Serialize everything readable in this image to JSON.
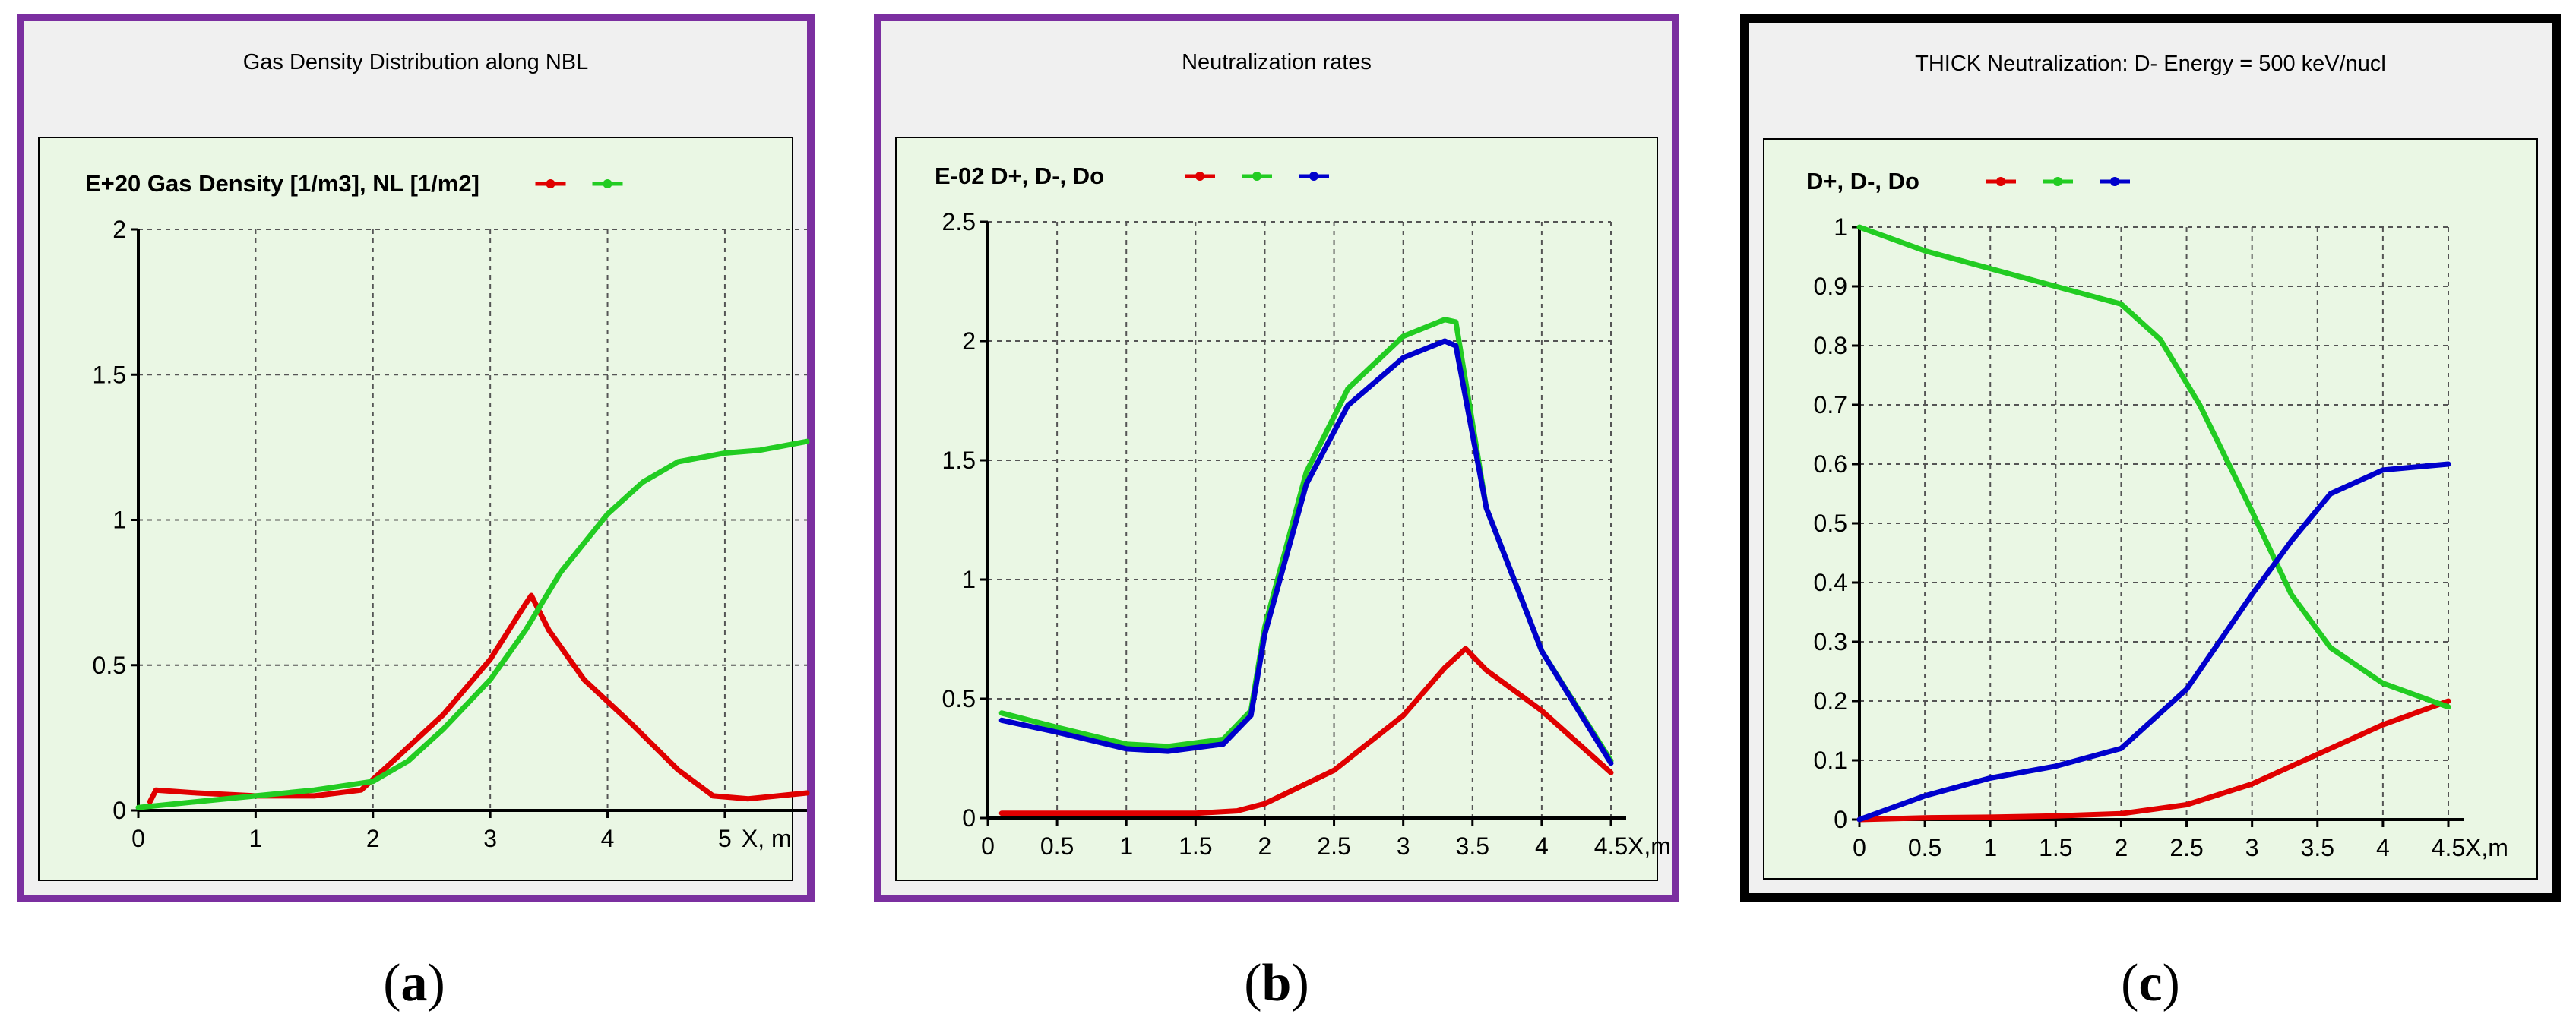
{
  "panels": [
    {
      "caption_letter": "a",
      "border_color": "#7b2fa0"
    },
    {
      "caption_letter": "b",
      "border_color": "#7b2fa0"
    },
    {
      "caption_letter": "c",
      "border_color": "#000000"
    }
  ],
  "chart_data": [
    {
      "type": "line",
      "title": "Gas Density Distribution along NBL",
      "header": "E+20  Gas Density [1/m3], NL [1/m2]",
      "xlabel": "X, m",
      "xlim": [
        0,
        5.7
      ],
      "ylim": [
        0,
        2
      ],
      "x_ticks": [
        0,
        1,
        2,
        3,
        4,
        5
      ],
      "x_tick_labels": [
        "0",
        "1",
        "2",
        "3",
        "4",
        "5"
      ],
      "y_ticks": [
        0,
        0.5,
        1,
        1.5,
        2
      ],
      "y_tick_labels": [
        "0",
        "0.5",
        "1",
        "1.5",
        "2"
      ],
      "grid": true,
      "legend": "top-right",
      "series": [
        {
          "color": "#e00000",
          "x": [
            0.1,
            0.15,
            0.5,
            1.0,
            1.5,
            1.9,
            2.2,
            2.6,
            3.0,
            3.3,
            3.35,
            3.5,
            3.8,
            4.2,
            4.6,
            4.9,
            5.2,
            5.7
          ],
          "y": [
            0.03,
            0.07,
            0.06,
            0.05,
            0.05,
            0.07,
            0.18,
            0.33,
            0.52,
            0.71,
            0.74,
            0.62,
            0.45,
            0.3,
            0.14,
            0.05,
            0.04,
            0.06
          ]
        },
        {
          "color": "#22cc22",
          "x": [
            0,
            0.5,
            1.0,
            1.5,
            2.0,
            2.3,
            2.6,
            3.0,
            3.3,
            3.6,
            4.0,
            4.3,
            4.6,
            5.0,
            5.3,
            5.7
          ],
          "y": [
            0.01,
            0.03,
            0.05,
            0.07,
            0.1,
            0.17,
            0.28,
            0.45,
            0.62,
            0.82,
            1.02,
            1.13,
            1.2,
            1.23,
            1.24,
            1.27
          ]
        }
      ]
    },
    {
      "type": "line",
      "title": "Neutralization rates",
      "header": "E-02  D+,  D-,  Do",
      "xlabel": "X,m",
      "xlim": [
        0,
        4.5
      ],
      "ylim": [
        0,
        2.5
      ],
      "x_ticks": [
        0,
        0.5,
        1,
        1.5,
        2,
        2.5,
        3,
        3.5,
        4,
        4.5
      ],
      "x_tick_labels": [
        "0",
        "0.5",
        "1",
        "1.5",
        "2",
        "2.5",
        "3",
        "3.5",
        "4",
        "4.5"
      ],
      "y_ticks": [
        0,
        0.5,
        1,
        1.5,
        2,
        2.5
      ],
      "y_tick_labels": [
        "0",
        "0.5",
        "1",
        "1.5",
        "2",
        "2.5"
      ],
      "grid": true,
      "legend": "top-right",
      "series": [
        {
          "color": "#e00000",
          "x": [
            0.1,
            0.5,
            1.0,
            1.5,
            1.8,
            2.0,
            2.5,
            3.0,
            3.3,
            3.45,
            3.6,
            4.0,
            4.5
          ],
          "y": [
            0.02,
            0.02,
            0.02,
            0.02,
            0.03,
            0.06,
            0.2,
            0.43,
            0.63,
            0.71,
            0.62,
            0.45,
            0.19
          ]
        },
        {
          "color": "#22cc22",
          "x": [
            0.1,
            0.5,
            1.0,
            1.3,
            1.7,
            1.9,
            2.0,
            2.3,
            2.6,
            3.0,
            3.3,
            3.38,
            3.6,
            4.0,
            4.5
          ],
          "y": [
            0.44,
            0.38,
            0.31,
            0.3,
            0.33,
            0.45,
            0.8,
            1.45,
            1.8,
            2.02,
            2.09,
            2.08,
            1.3,
            0.7,
            0.24
          ]
        },
        {
          "color": "#0000cc",
          "x": [
            0.1,
            0.5,
            1.0,
            1.3,
            1.7,
            1.9,
            2.0,
            2.3,
            2.6,
            3.0,
            3.3,
            3.38,
            3.6,
            4.0,
            4.5
          ],
          "y": [
            0.41,
            0.36,
            0.29,
            0.28,
            0.31,
            0.43,
            0.77,
            1.4,
            1.73,
            1.93,
            2.0,
            1.98,
            1.3,
            0.7,
            0.23
          ]
        }
      ]
    },
    {
      "type": "line",
      "title": "THICK Neutralization:  D-  Energy = 500 keV/nucl",
      "header": "D+,  D-,  Do",
      "xlabel": "X,m",
      "xlim": [
        0,
        4.5
      ],
      "ylim": [
        0,
        1
      ],
      "x_ticks": [
        0,
        0.5,
        1,
        1.5,
        2,
        2.5,
        3,
        3.5,
        4,
        4.5
      ],
      "x_tick_labels": [
        "0",
        "0.5",
        "1",
        "1.5",
        "2",
        "2.5",
        "3",
        "3.5",
        "4",
        "4.5"
      ],
      "y_ticks": [
        0,
        0.1,
        0.2,
        0.3,
        0.4,
        0.5,
        0.6,
        0.7,
        0.8,
        0.9,
        1
      ],
      "y_tick_labels": [
        "0",
        "0.1",
        "0.2",
        "0.3",
        "0.4",
        "0.5",
        "0.6",
        "0.7",
        "0.8",
        "0.9",
        "1"
      ],
      "grid": true,
      "legend": "top-right",
      "series": [
        {
          "color": "#e00000",
          "x": [
            0,
            0.5,
            1.0,
            1.5,
            2.0,
            2.5,
            3.0,
            3.5,
            4.0,
            4.5
          ],
          "y": [
            0.0,
            0.003,
            0.004,
            0.006,
            0.01,
            0.025,
            0.06,
            0.11,
            0.16,
            0.2
          ]
        },
        {
          "color": "#22cc22",
          "x": [
            0,
            0.5,
            1.0,
            1.5,
            2.0,
            2.3,
            2.6,
            3.0,
            3.3,
            3.6,
            4.0,
            4.5
          ],
          "y": [
            1.0,
            0.96,
            0.93,
            0.9,
            0.87,
            0.81,
            0.7,
            0.52,
            0.38,
            0.29,
            0.23,
            0.19
          ]
        },
        {
          "color": "#0000cc",
          "x": [
            0,
            0.5,
            1.0,
            1.5,
            2.0,
            2.5,
            3.0,
            3.3,
            3.6,
            4.0,
            4.5
          ],
          "y": [
            0.0,
            0.04,
            0.07,
            0.09,
            0.12,
            0.22,
            0.38,
            0.47,
            0.55,
            0.59,
            0.6
          ]
        }
      ]
    }
  ]
}
